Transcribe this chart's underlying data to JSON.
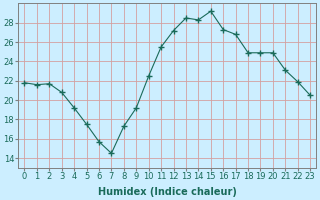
{
  "x": [
    0,
    1,
    2,
    3,
    4,
    5,
    6,
    7,
    8,
    9,
    10,
    11,
    12,
    13,
    14,
    15,
    16,
    17,
    18,
    19,
    20,
    21,
    22,
    23
  ],
  "y": [
    21.8,
    21.6,
    21.7,
    20.8,
    19.2,
    17.5,
    15.7,
    14.5,
    17.3,
    19.2,
    22.5,
    25.5,
    27.2,
    28.5,
    28.3,
    29.2,
    27.3,
    26.8,
    24.9,
    24.9,
    24.9,
    23.1,
    21.9,
    20.5
  ],
  "line_color": "#1a6b5a",
  "marker": "+",
  "marker_size": 4,
  "bg_color": "#cceeff",
  "grid_color": "#d4a0a0",
  "xlabel": "Humidex (Indice chaleur)",
  "ylim": [
    13,
    30
  ],
  "xlim": [
    -0.5,
    23.5
  ],
  "yticks": [
    14,
    16,
    18,
    20,
    22,
    24,
    26,
    28
  ],
  "xticks": [
    0,
    1,
    2,
    3,
    4,
    5,
    6,
    7,
    8,
    9,
    10,
    11,
    12,
    13,
    14,
    15,
    16,
    17,
    18,
    19,
    20,
    21,
    22,
    23
  ],
  "xtick_labels": [
    "0",
    "1",
    "2",
    "3",
    "4",
    "5",
    "6",
    "7",
    "8",
    "9",
    "10",
    "11",
    "12",
    "13",
    "14",
    "15",
    "16",
    "17",
    "18",
    "19",
    "20",
    "21",
    "22",
    "23"
  ],
  "tick_color": "#1a6b5a",
  "axis_color": "#808080",
  "label_fontsize": 7,
  "tick_fontsize": 6
}
